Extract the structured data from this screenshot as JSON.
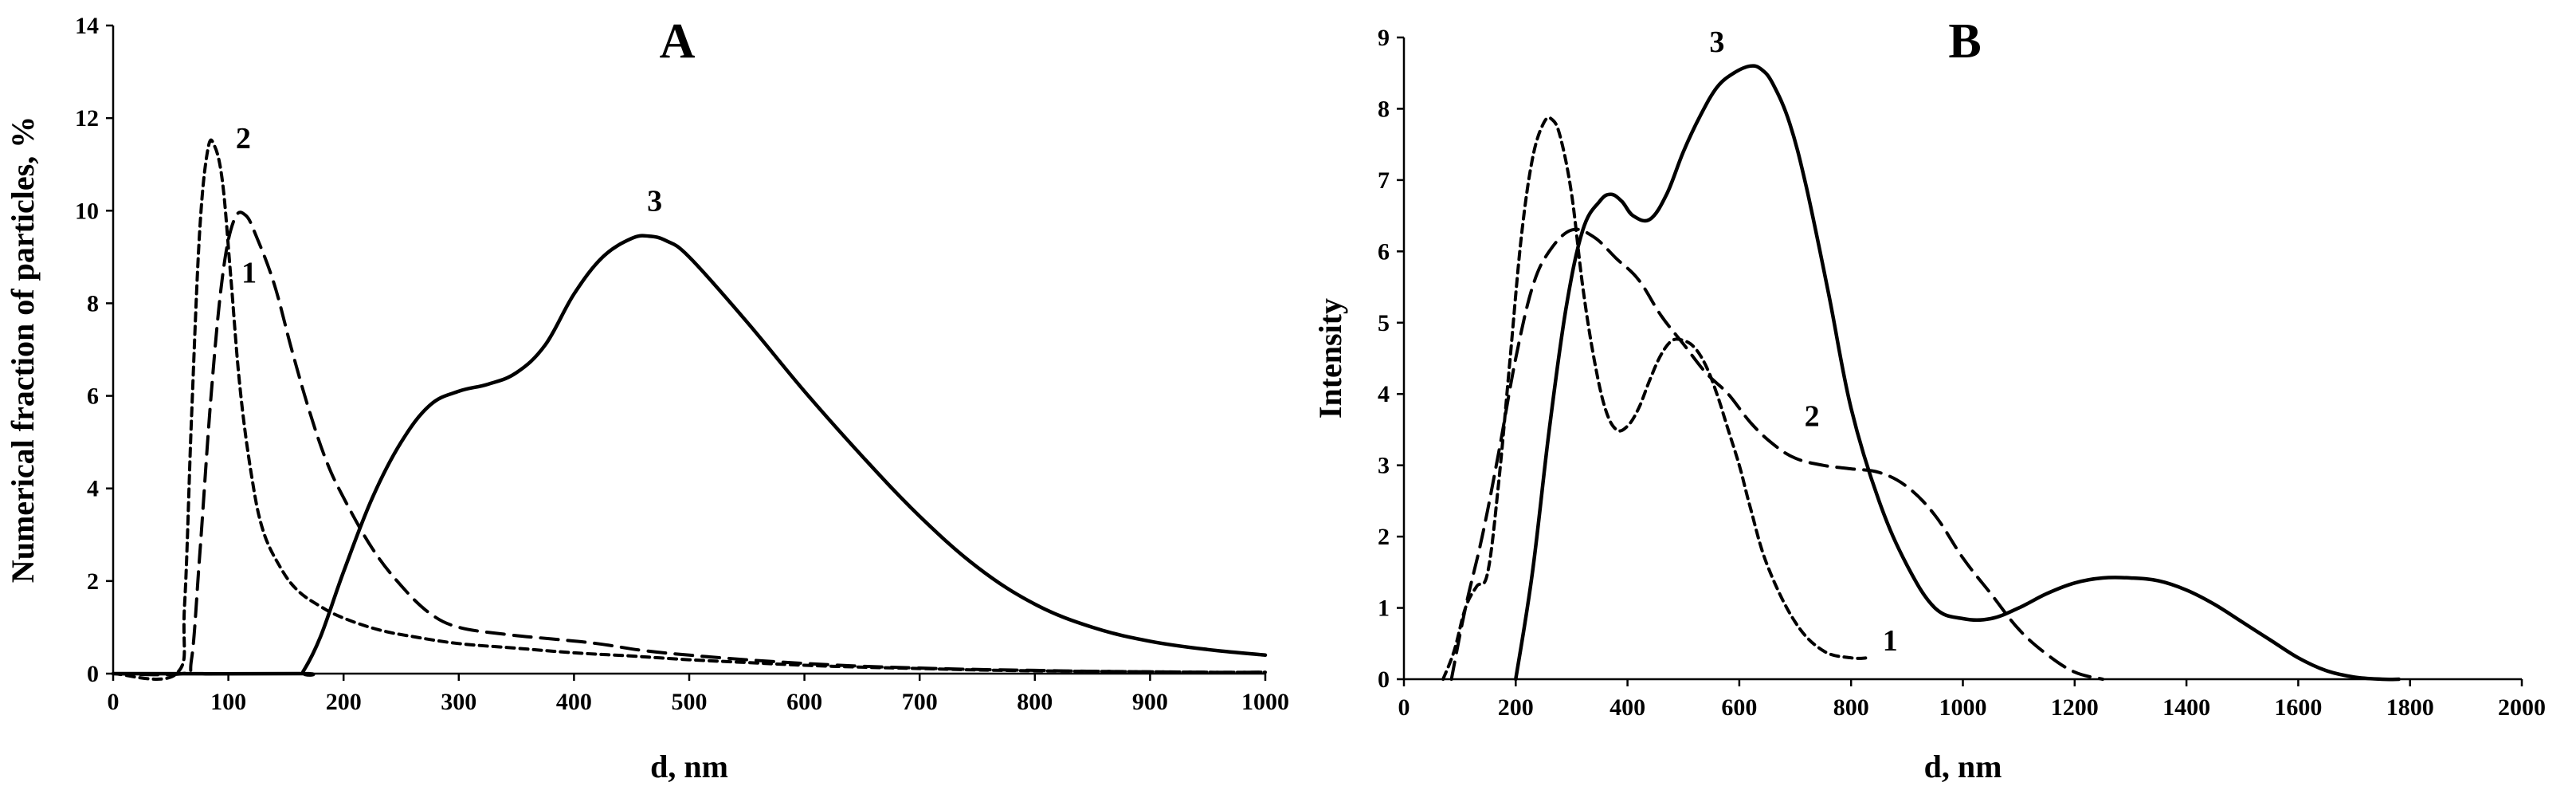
{
  "chart_data": [
    {
      "type": "line",
      "title": "A",
      "xlabel": "d, nm",
      "ylabel": "Numerical fraction of particles, %",
      "xlim": [
        0,
        1000
      ],
      "ylim": [
        0,
        14
      ],
      "xticks": [
        0,
        100,
        200,
        300,
        400,
        500,
        600,
        700,
        800,
        900,
        1000
      ],
      "yticks": [
        0,
        2,
        4,
        6,
        8,
        10,
        12,
        14
      ],
      "grid": false,
      "series": [
        {
          "name": "1",
          "style": "long-dash",
          "x": [
            0,
            60,
            68,
            75,
            85,
            95,
            105,
            115,
            125,
            140,
            155,
            170,
            185,
            200,
            225,
            250,
            275,
            300,
            340,
            380,
            420,
            460,
            500,
            550,
            600,
            650,
            700,
            750,
            800,
            850,
            900,
            950,
            1000
          ],
          "y": [
            0,
            0,
            0.3,
            2.5,
            6.0,
            8.6,
            9.8,
            9.9,
            9.4,
            8.4,
            7.0,
            5.7,
            4.6,
            3.8,
            2.7,
            1.9,
            1.3,
            1.0,
            0.85,
            0.75,
            0.65,
            0.5,
            0.4,
            0.3,
            0.22,
            0.16,
            0.12,
            0.09,
            0.07,
            0.05,
            0.04,
            0.03,
            0.03
          ]
        },
        {
          "name": "2",
          "style": "short-dash",
          "x": [
            0,
            55,
            62,
            68,
            75,
            82,
            88,
            95,
            102,
            110,
            120,
            130,
            145,
            160,
            180,
            200,
            230,
            260,
            300,
            350,
            400,
            450,
            500,
            550,
            600,
            650,
            700,
            750,
            800,
            850,
            900,
            950,
            1000
          ],
          "y": [
            0,
            0,
            1.5,
            5.5,
            9.5,
            11.3,
            11.4,
            10.6,
            8.6,
            6.2,
            4.3,
            3.1,
            2.3,
            1.8,
            1.45,
            1.2,
            0.95,
            0.8,
            0.65,
            0.55,
            0.45,
            0.38,
            0.3,
            0.24,
            0.18,
            0.14,
            0.11,
            0.08,
            0.06,
            0.05,
            0.04,
            0.03,
            0.03
          ]
        },
        {
          "name": "3",
          "style": "solid",
          "x": [
            0,
            160,
            165,
            180,
            200,
            225,
            250,
            275,
            300,
            325,
            350,
            375,
            400,
            425,
            450,
            465,
            480,
            500,
            550,
            600,
            650,
            700,
            750,
            800,
            850,
            900,
            950,
            1000
          ],
          "y": [
            0,
            0,
            0.05,
            0.8,
            2.2,
            3.8,
            5.0,
            5.8,
            6.1,
            6.25,
            6.5,
            7.1,
            8.2,
            9.0,
            9.4,
            9.45,
            9.35,
            9.0,
            7.6,
            6.1,
            4.7,
            3.4,
            2.3,
            1.5,
            1.0,
            0.7,
            0.52,
            0.4
          ]
        }
      ],
      "annotations": [
        {
          "text": "1",
          "x": 118,
          "y": 8.45
        },
        {
          "text": "2",
          "x": 113,
          "y": 11.35
        },
        {
          "text": "3",
          "x": 470,
          "y": 10.0
        }
      ]
    },
    {
      "type": "line",
      "title": "B",
      "xlabel": "d, nm",
      "ylabel": "Intensity",
      "xlim": [
        0,
        2000
      ],
      "ylim": [
        0,
        9
      ],
      "xticks": [
        0,
        200,
        400,
        600,
        800,
        1000,
        1200,
        1400,
        1600,
        1800,
        2000
      ],
      "yticks": [
        0,
        1,
        2,
        3,
        4,
        5,
        6,
        7,
        8,
        9
      ],
      "grid": false,
      "series": [
        {
          "name": "1",
          "style": "short-dash",
          "x": [
            70,
            90,
            110,
            130,
            150,
            170,
            190,
            210,
            230,
            250,
            265,
            280,
            300,
            320,
            340,
            360,
            380,
            400,
            420,
            440,
            460,
            480,
            500,
            520,
            540,
            560,
            580,
            600,
            620,
            650,
            700,
            750,
            800,
            830
          ],
          "y": [
            0,
            0.4,
            1.0,
            1.3,
            1.5,
            2.8,
            4.5,
            6.2,
            7.3,
            7.8,
            7.85,
            7.6,
            6.8,
            5.5,
            4.5,
            3.8,
            3.5,
            3.55,
            3.8,
            4.2,
            4.55,
            4.75,
            4.75,
            4.65,
            4.4,
            4.0,
            3.5,
            3.0,
            2.4,
            1.6,
            0.8,
            0.4,
            0.3,
            0.3
          ]
        },
        {
          "name": "2",
          "style": "long-dash",
          "x": [
            85,
            110,
            140,
            170,
            200,
            230,
            260,
            300,
            340,
            380,
            420,
            460,
            500,
            540,
            580,
            620,
            660,
            700,
            750,
            800,
            850,
            900,
            950,
            1000,
            1050,
            1100,
            1150,
            1200,
            1250
          ],
          "y": [
            0,
            1.0,
            2.0,
            3.2,
            4.5,
            5.5,
            6.0,
            6.3,
            6.2,
            5.9,
            5.6,
            5.1,
            4.7,
            4.3,
            4.0,
            3.6,
            3.3,
            3.1,
            3.0,
            2.95,
            2.9,
            2.7,
            2.3,
            1.7,
            1.2,
            0.7,
            0.35,
            0.1,
            0
          ]
        },
        {
          "name": "3",
          "style": "solid",
          "x": [
            200,
            230,
            260,
            290,
            320,
            350,
            370,
            390,
            410,
            440,
            470,
            500,
            530,
            560,
            590,
            620,
            640,
            660,
            690,
            720,
            760,
            800,
            850,
            900,
            950,
            1000,
            1050,
            1100,
            1150,
            1200,
            1250,
            1300,
            1350,
            1400,
            1450,
            1500,
            1550,
            1600,
            1650,
            1700,
            1750,
            1780
          ],
          "y": [
            0,
            1.5,
            3.5,
            5.2,
            6.3,
            6.7,
            6.8,
            6.7,
            6.5,
            6.45,
            6.8,
            7.4,
            7.9,
            8.3,
            8.5,
            8.6,
            8.55,
            8.35,
            7.8,
            6.9,
            5.4,
            3.8,
            2.5,
            1.6,
            1.0,
            0.85,
            0.85,
            1.0,
            1.2,
            1.35,
            1.42,
            1.42,
            1.38,
            1.25,
            1.05,
            0.8,
            0.55,
            0.3,
            0.12,
            0.03,
            0,
            0
          ]
        }
      ],
      "annotations": [
        {
          "text": "1",
          "x": 870,
          "y": 0.4
        },
        {
          "text": "2",
          "x": 730,
          "y": 3.55
        },
        {
          "text": "3",
          "x": 560,
          "y": 8.8
        }
      ]
    }
  ]
}
